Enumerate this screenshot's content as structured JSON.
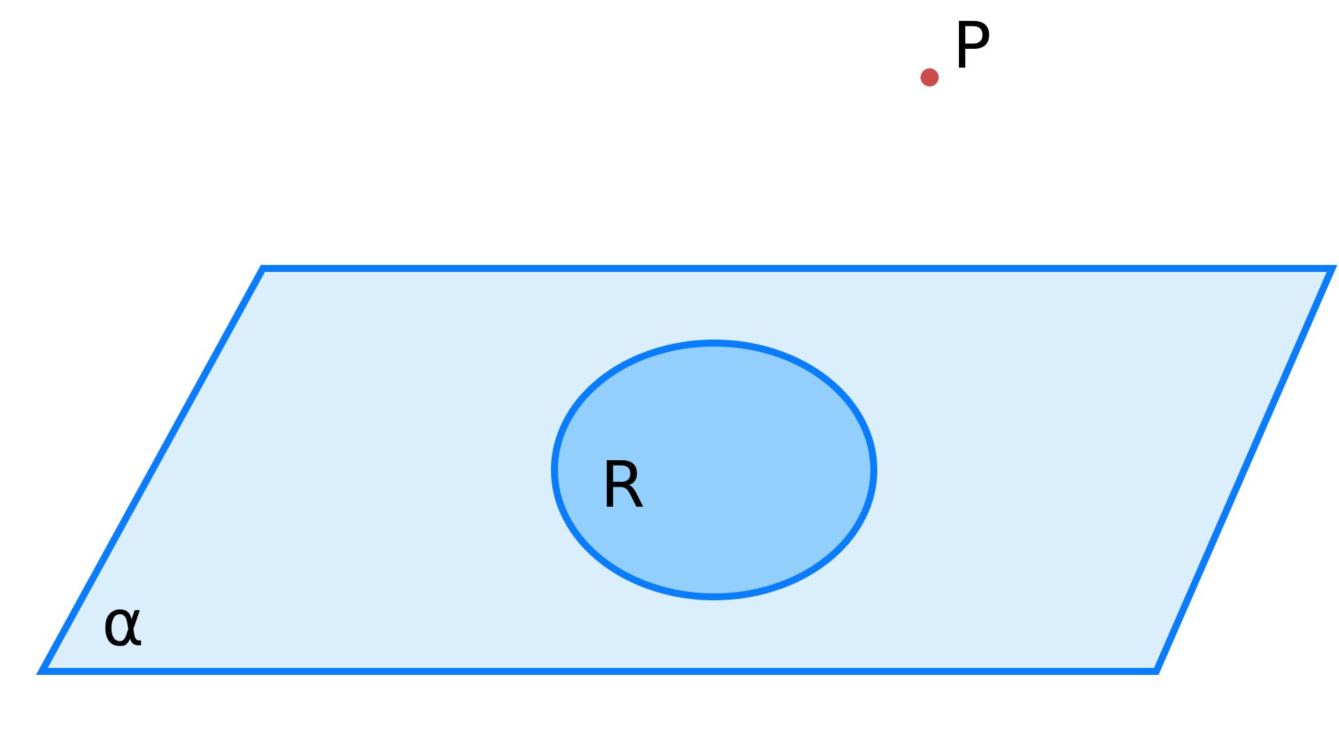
{
  "diagram": {
    "point": {
      "label": "P",
      "color": "#cc4b4b"
    },
    "plane": {
      "label": "α",
      "fill": "#dbeefc",
      "stroke": "#0a7cff"
    },
    "region": {
      "label": "R",
      "fill": "#93cffc",
      "stroke": "#0a7cff"
    }
  }
}
